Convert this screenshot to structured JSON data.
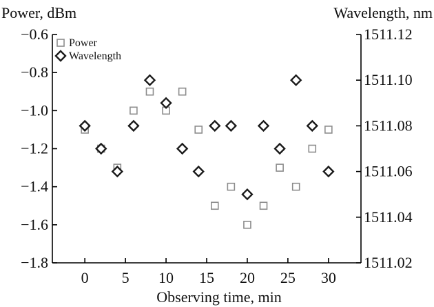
{
  "chart_data": {
    "type": "scatter",
    "title": "",
    "xlabel": "Observing time, min",
    "ylabel_left": "Power, dBm",
    "ylabel_right": "Wavelength, nm",
    "xlim": [
      -4,
      34
    ],
    "ylim_left": [
      -1.8,
      -0.6
    ],
    "ylim_right": [
      1511.02,
      1511.12
    ],
    "x_ticks": [
      0,
      5,
      10,
      15,
      20,
      25,
      30
    ],
    "y_ticks_left": [
      -0.6,
      -0.8,
      -1.0,
      -1.2,
      -1.4,
      -1.6,
      -1.8
    ],
    "y_ticks_right": [
      1511.12,
      1511.1,
      1511.08,
      1511.06,
      1511.04,
      1511.02
    ],
    "y_tick_labels_left": [
      "−0.6",
      "−0.8",
      "−1.0",
      "−1.2",
      "−1.4",
      "−1.6",
      "−1.8"
    ],
    "y_tick_labels_right": [
      "1511.12",
      "1511.10",
      "1511.08",
      "1511.06",
      "1511.04",
      "1511.02"
    ],
    "grid": false,
    "legend_position": "top-left",
    "series": [
      {
        "name": "Power",
        "marker": "square",
        "axis": "left",
        "color": "#8c8c8c",
        "x": [
          0,
          2,
          4,
          6,
          8,
          10,
          12,
          14,
          16,
          18,
          20,
          22,
          24,
          26,
          28,
          30
        ],
        "y": [
          -1.1,
          -1.2,
          -1.3,
          -1.0,
          -0.9,
          -1.0,
          -0.9,
          -1.1,
          -1.5,
          -1.4,
          -1.6,
          -1.5,
          -1.3,
          -1.4,
          -1.2,
          -1.1
        ]
      },
      {
        "name": "Wavelength",
        "marker": "diamond",
        "axis": "right",
        "color": "#1a1a1a",
        "x": [
          0,
          2,
          4,
          6,
          8,
          10,
          12,
          14,
          16,
          18,
          20,
          22,
          24,
          26,
          28,
          30
        ],
        "y": [
          1511.08,
          1511.07,
          1511.06,
          1511.08,
          1511.1,
          1511.09,
          1511.07,
          1511.06,
          1511.08,
          1511.08,
          1511.05,
          1511.08,
          1511.07,
          1511.1,
          1511.08,
          1511.06
        ]
      }
    ]
  }
}
